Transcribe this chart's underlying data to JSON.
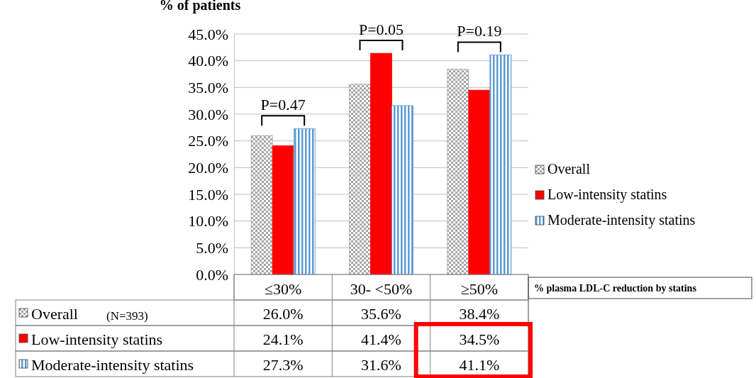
{
  "chart_data": {
    "type": "bar",
    "ylabel": "% of patients",
    "xlabel": "% plasma LDL-C reduction by statins",
    "categories": [
      "≤30%",
      "30- <50%",
      "≥50%"
    ],
    "series": [
      {
        "name": "Overall",
        "color": "#a6a6a6",
        "values": [
          26.0,
          35.6,
          38.4
        ],
        "value_labels": [
          "26.0%",
          "35.6%",
          "38.4%"
        ]
      },
      {
        "name": "Low-intensity statins",
        "color": "#ff0000",
        "values": [
          24.1,
          41.4,
          34.5
        ],
        "value_labels": [
          "24.1%",
          "41.4%",
          "34.5%"
        ]
      },
      {
        "name": "Moderate-intensity statins",
        "color": "#5b9bd5",
        "values": [
          27.3,
          31.6,
          41.1
        ],
        "value_labels": [
          "27.3%",
          "31.6%",
          "41.1%"
        ]
      }
    ],
    "ylim": [
      0,
      45
    ],
    "yticks": [
      {
        "value": 0,
        "label": "0.0%"
      },
      {
        "value": 5,
        "label": "5.0%"
      },
      {
        "value": 10,
        "label": "10.0%"
      },
      {
        "value": 15,
        "label": "15.0%"
      },
      {
        "value": 20,
        "label": "20.0%"
      },
      {
        "value": 25,
        "label": "25.0%"
      },
      {
        "value": 30,
        "label": "30.0%"
      },
      {
        "value": 35,
        "label": "35.0%"
      },
      {
        "value": 40,
        "label": "40.0%"
      },
      {
        "value": 45,
        "label": "45.0%"
      }
    ],
    "grid": "y",
    "legend": "right",
    "annotations": [
      "P=0.47",
      "P=0.05",
      "P=0.19",
      "(N=393)"
    ]
  }
}
